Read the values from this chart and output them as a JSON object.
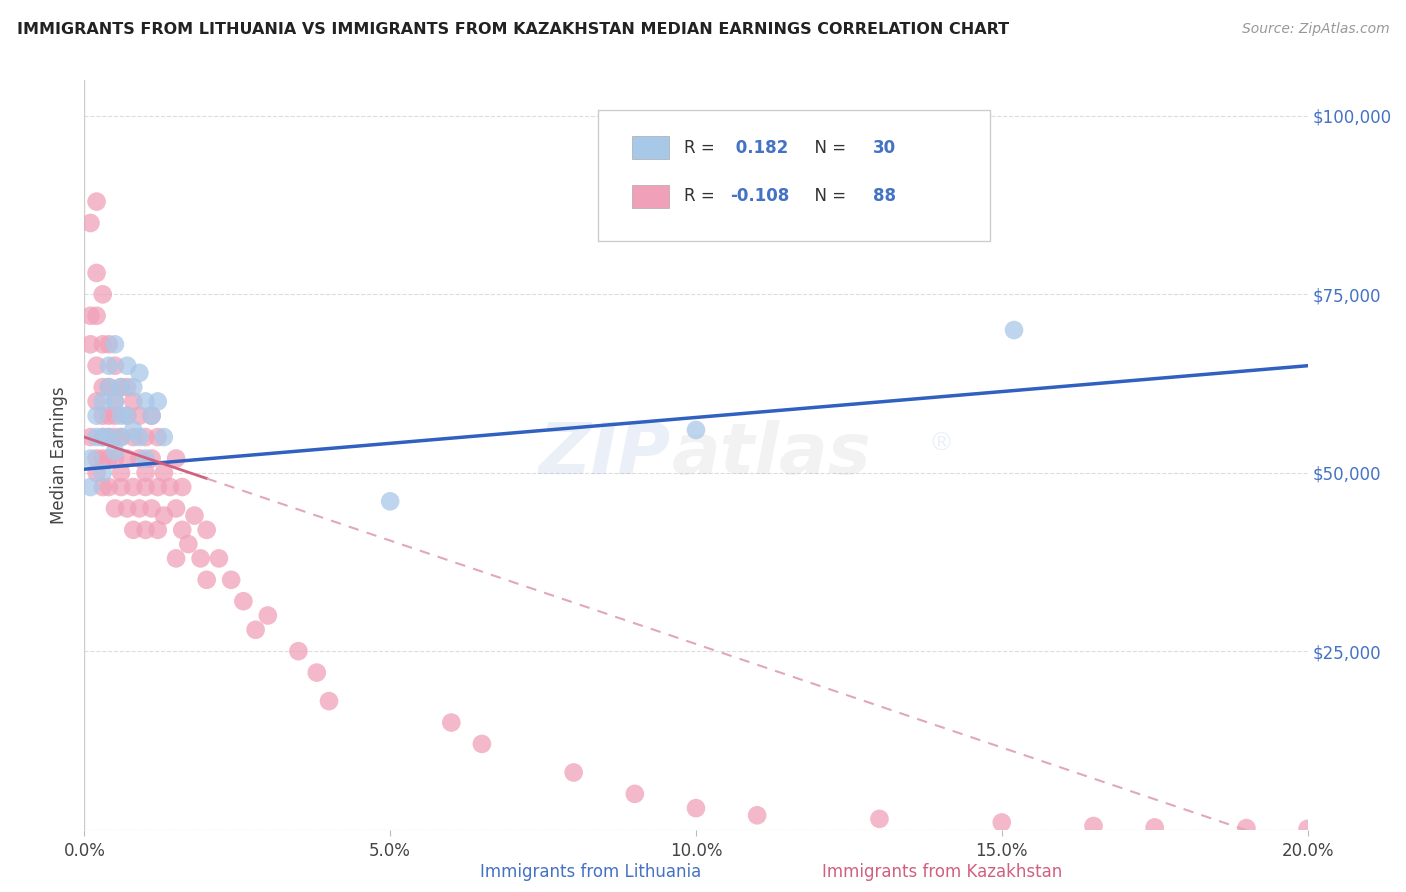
{
  "title": "IMMIGRANTS FROM LITHUANIA VS IMMIGRANTS FROM KAZAKHSTAN MEDIAN EARNINGS CORRELATION CHART",
  "source_text": "Source: ZipAtlas.com",
  "ylabel": "Median Earnings",
  "xmin": 0.0,
  "xmax": 0.2,
  "ymin": 0,
  "ymax": 105000,
  "yticks": [
    0,
    25000,
    50000,
    75000,
    100000
  ],
  "ytick_labels": [
    "",
    "$25,000",
    "$50,000",
    "$75,000",
    "$100,000"
  ],
  "xticks": [
    0.0,
    0.05,
    0.1,
    0.15,
    0.2
  ],
  "xtick_labels": [
    "0.0%",
    "5.0%",
    "10.0%",
    "15.0%",
    "20.0%"
  ],
  "color_lithuania": "#a8c8e8",
  "color_kazakhstan": "#f0a0b8",
  "trendline_lithuania_color": "#3060c0",
  "trendline_kazakhstan_solid_color": "#d06080",
  "trendline_kazakhstan_dash_color": "#e0a8b8",
  "background_color": "#ffffff",
  "lit_legend_r": " 0.182",
  "lit_legend_n": "30",
  "kaz_legend_r": "-0.108",
  "kaz_legend_n": "88",
  "watermark_text": "ZIPatlas",
  "watermark_reg": "®",
  "lithuania_x": [
    0.001,
    0.001,
    0.002,
    0.002,
    0.003,
    0.003,
    0.003,
    0.004,
    0.004,
    0.004,
    0.005,
    0.005,
    0.005,
    0.006,
    0.006,
    0.006,
    0.007,
    0.007,
    0.008,
    0.008,
    0.009,
    0.009,
    0.01,
    0.01,
    0.011,
    0.012,
    0.013,
    0.05,
    0.1,
    0.152
  ],
  "lithuania_y": [
    52000,
    48000,
    55000,
    58000,
    60000,
    55000,
    50000,
    65000,
    62000,
    55000,
    68000,
    60000,
    53000,
    62000,
    58000,
    55000,
    65000,
    58000,
    62000,
    56000,
    64000,
    55000,
    60000,
    52000,
    58000,
    60000,
    55000,
    46000,
    56000,
    70000
  ],
  "kazakhstan_x": [
    0.001,
    0.001,
    0.001,
    0.001,
    0.002,
    0.002,
    0.002,
    0.002,
    0.002,
    0.002,
    0.002,
    0.003,
    0.003,
    0.003,
    0.003,
    0.003,
    0.003,
    0.003,
    0.004,
    0.004,
    0.004,
    0.004,
    0.004,
    0.004,
    0.005,
    0.005,
    0.005,
    0.005,
    0.005,
    0.005,
    0.006,
    0.006,
    0.006,
    0.006,
    0.007,
    0.007,
    0.007,
    0.007,
    0.008,
    0.008,
    0.008,
    0.008,
    0.009,
    0.009,
    0.009,
    0.01,
    0.01,
    0.01,
    0.01,
    0.011,
    0.011,
    0.011,
    0.012,
    0.012,
    0.012,
    0.013,
    0.013,
    0.014,
    0.015,
    0.015,
    0.015,
    0.016,
    0.016,
    0.017,
    0.018,
    0.019,
    0.02,
    0.02,
    0.022,
    0.024,
    0.026,
    0.028,
    0.03,
    0.035,
    0.038,
    0.04,
    0.06,
    0.065,
    0.08,
    0.09,
    0.1,
    0.11,
    0.13,
    0.15,
    0.165,
    0.175,
    0.19,
    0.2
  ],
  "kazakhstan_y": [
    55000,
    68000,
    72000,
    85000,
    52000,
    60000,
    65000,
    72000,
    78000,
    88000,
    50000,
    55000,
    62000,
    68000,
    75000,
    58000,
    48000,
    52000,
    55000,
    62000,
    68000,
    48000,
    58000,
    52000,
    60000,
    55000,
    65000,
    52000,
    45000,
    58000,
    55000,
    50000,
    62000,
    48000,
    58000,
    52000,
    45000,
    62000,
    55000,
    48000,
    60000,
    42000,
    52000,
    58000,
    45000,
    50000,
    55000,
    48000,
    42000,
    52000,
    45000,
    58000,
    48000,
    42000,
    55000,
    50000,
    44000,
    48000,
    45000,
    38000,
    52000,
    42000,
    48000,
    40000,
    44000,
    38000,
    42000,
    35000,
    38000,
    35000,
    32000,
    28000,
    30000,
    25000,
    22000,
    18000,
    15000,
    12000,
    8000,
    5000,
    3000,
    2000,
    1500,
    1000,
    500,
    300,
    200,
    100
  ]
}
